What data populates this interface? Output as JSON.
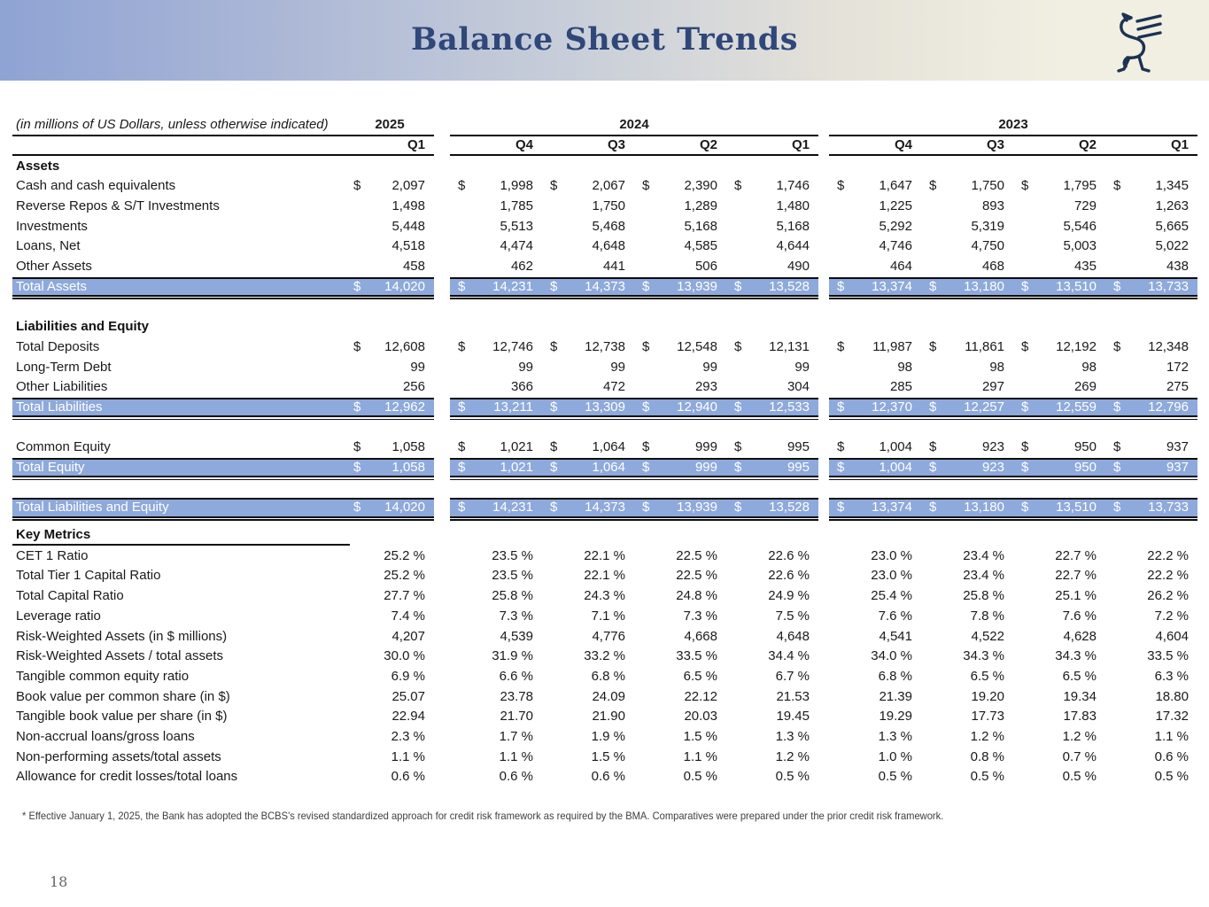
{
  "page": {
    "title": "Balance Sheet Trends",
    "units_note": "(in millions of US Dollars, unless otherwise indicated)",
    "footnote": "* Effective January 1, 2025, the Bank has adopted the BCBS's revised standardized approach for credit risk framework as required by the BMA. Comparatives were prepared under the prior credit risk framework.",
    "page_number": "18"
  },
  "colors": {
    "header_gradient_left": "#8fa3d4",
    "header_gradient_right": "#f1efe2",
    "title_text": "#2f4779",
    "highlight_fill": "#8ea9db",
    "highlight_text": "#ffffff",
    "logo_navy": "#1d3252"
  },
  "columns": {
    "year_groups": [
      {
        "year": "2025",
        "quarters": [
          "Q1"
        ]
      },
      {
        "year": "2024",
        "quarters": [
          "Q4",
          "Q3",
          "Q2",
          "Q1"
        ]
      },
      {
        "year": "2023",
        "quarters": [
          "Q4",
          "Q3",
          "Q2",
          "Q1"
        ]
      }
    ]
  },
  "table": {
    "sections": [
      {
        "header": "Assets",
        "underline": false,
        "rows": [
          {
            "label": "Cash and cash equivalents",
            "dollar": true,
            "values": [
              "2,097",
              "1,998",
              "2,067",
              "2,390",
              "1,746",
              "1,647",
              "1,750",
              "1,795",
              "1,345"
            ]
          },
          {
            "label": "Reverse Repos & S/T Investments",
            "values": [
              "1,498",
              "1,785",
              "1,750",
              "1,289",
              "1,480",
              "1,225",
              "893",
              "729",
              "1,263"
            ]
          },
          {
            "label": "Investments",
            "values": [
              "5,448",
              "5,513",
              "5,468",
              "5,168",
              "5,168",
              "5,292",
              "5,319",
              "5,546",
              "5,665"
            ]
          },
          {
            "label": "Loans, Net",
            "values": [
              "4,518",
              "4,474",
              "4,648",
              "4,585",
              "4,644",
              "4,746",
              "4,750",
              "5,003",
              "5,022"
            ]
          },
          {
            "label": "Other Assets",
            "values": [
              "458",
              "462",
              "441",
              "506",
              "490",
              "464",
              "468",
              "435",
              "438"
            ]
          },
          {
            "label": "Total Assets",
            "type": "total",
            "dollar": true,
            "values": [
              "14,020",
              "14,231",
              "14,373",
              "13,939",
              "13,528",
              "13,374",
              "13,180",
              "13,510",
              "13,733"
            ]
          },
          {
            "type": "spacer"
          }
        ]
      },
      {
        "header": "Liabilities and Equity",
        "underline": false,
        "rows": [
          {
            "label": "Total Deposits",
            "dollar": true,
            "values": [
              "12,608",
              "12,746",
              "12,738",
              "12,548",
              "12,131",
              "11,987",
              "11,861",
              "12,192",
              "12,348"
            ]
          },
          {
            "label": "Long-Term Debt",
            "values": [
              "99",
              "99",
              "99",
              "99",
              "99",
              "98",
              "98",
              "98",
              "172"
            ]
          },
          {
            "label": "Other Liabilities",
            "values": [
              "256",
              "366",
              "472",
              "293",
              "304",
              "285",
              "297",
              "269",
              "275"
            ]
          },
          {
            "label": "Total Liabilities",
            "type": "total",
            "dollar": true,
            "values": [
              "12,962",
              "13,211",
              "13,309",
              "12,940",
              "12,533",
              "12,370",
              "12,257",
              "12,559",
              "12,796"
            ]
          },
          {
            "type": "spacer"
          },
          {
            "label": "Common Equity",
            "dollar": true,
            "values": [
              "1,058",
              "1,021",
              "1,064",
              "999",
              "995",
              "1,004",
              "923",
              "950",
              "937"
            ]
          },
          {
            "label": "Total Equity",
            "type": "total",
            "dollar": true,
            "values": [
              "1,058",
              "1,021",
              "1,064",
              "999",
              "995",
              "1,004",
              "923",
              "950",
              "937"
            ]
          },
          {
            "type": "spacer"
          },
          {
            "label": "Total Liabilities and Equity",
            "type": "total",
            "dollar": true,
            "values": [
              "14,020",
              "14,231",
              "14,373",
              "13,939",
              "13,528",
              "13,374",
              "13,180",
              "13,510",
              "13,733"
            ]
          }
        ]
      },
      {
        "header": "Key Metrics",
        "underline": true,
        "rows": [
          {
            "label": "CET 1 Ratio",
            "values": [
              "25.2 %",
              "23.5 %",
              "22.1 %",
              "22.5 %",
              "22.6 %",
              "23.0 %",
              "23.4 %",
              "22.7 %",
              "22.2 %"
            ]
          },
          {
            "label": "Total Tier 1 Capital Ratio",
            "values": [
              "25.2 %",
              "23.5 %",
              "22.1 %",
              "22.5 %",
              "22.6 %",
              "23.0 %",
              "23.4 %",
              "22.7 %",
              "22.2 %"
            ]
          },
          {
            "label": "Total Capital Ratio",
            "values": [
              "27.7 %",
              "25.8 %",
              "24.3 %",
              "24.8 %",
              "24.9 %",
              "25.4 %",
              "25.8 %",
              "25.1 %",
              "26.2 %"
            ]
          },
          {
            "label": "Leverage ratio",
            "values": [
              "7.4 %",
              "7.3 %",
              "7.1 %",
              "7.3 %",
              "7.5 %",
              "7.6 %",
              "7.8 %",
              "7.6 %",
              "7.2 %"
            ]
          },
          {
            "label": "Risk-Weighted Assets (in $ millions)",
            "values": [
              "4,207",
              "4,539",
              "4,776",
              "4,668",
              "4,648",
              "4,541",
              "4,522",
              "4,628",
              "4,604"
            ]
          },
          {
            "label": "Risk-Weighted Assets / total assets",
            "values": [
              "30.0 %",
              "31.9 %",
              "33.2 %",
              "33.5 %",
              "34.4 %",
              "34.0 %",
              "34.3 %",
              "34.3 %",
              "33.5 %"
            ]
          },
          {
            "label": "Tangible common equity ratio",
            "values": [
              "6.9 %",
              "6.6 %",
              "6.8 %",
              "6.5 %",
              "6.7 %",
              "6.8 %",
              "6.5 %",
              "6.5 %",
              "6.3 %"
            ]
          },
          {
            "label": "Book value per common share (in $)",
            "values": [
              "25.07",
              "23.78",
              "24.09",
              "22.12",
              "21.53",
              "21.39",
              "19.20",
              "19.34",
              "18.80"
            ]
          },
          {
            "label": "Tangible book value per share (in $)",
            "values": [
              "22.94",
              "21.70",
              "21.90",
              "20.03",
              "19.45",
              "19.29",
              "17.73",
              "17.83",
              "17.32"
            ]
          },
          {
            "label": "Non-accrual loans/gross loans",
            "values": [
              "2.3 %",
              "1.7 %",
              "1.9 %",
              "1.5 %",
              "1.3 %",
              "1.3 %",
              "1.2 %",
              "1.2 %",
              "1.1 %"
            ]
          },
          {
            "label": "Non-performing assets/total assets",
            "values": [
              "1.1 %",
              "1.1 %",
              "1.5 %",
              "1.1 %",
              "1.2 %",
              "1.0 %",
              "0.8 %",
              "0.7 %",
              "0.6 %"
            ]
          },
          {
            "label": "Allowance for credit losses/total loans",
            "values": [
              "0.6 %",
              "0.6 %",
              "0.6 %",
              "0.5 %",
              "0.5 %",
              "0.5 %",
              "0.5 %",
              "0.5 %",
              "0.5 %"
            ]
          }
        ]
      }
    ]
  }
}
